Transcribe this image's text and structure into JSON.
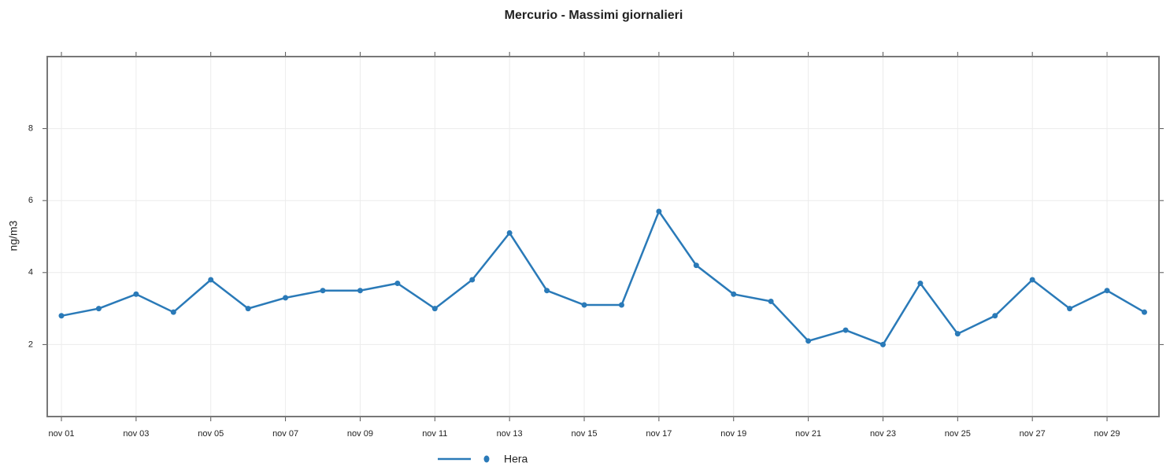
{
  "chart_data": {
    "type": "line",
    "title": "Mercurio - Massimi giornalieri",
    "y_label": "ng/m3",
    "categories": [
      "nov 01",
      null,
      "nov 03",
      null,
      "nov 05",
      null,
      "nov 07",
      null,
      "nov 09",
      null,
      "nov 11",
      null,
      "nov 13",
      null,
      "nov 15",
      null,
      "nov 17",
      null,
      "nov 19",
      null,
      "nov 21",
      null,
      "nov 23",
      null,
      "nov 25",
      null,
      "nov 27",
      null,
      "nov 29",
      null
    ],
    "series": [
      {
        "name": "Hera",
        "color": "#2a7ab8",
        "values": [
          2.8,
          3.0,
          3.4,
          2.9,
          3.8,
          3.0,
          3.3,
          3.5,
          3.5,
          3.7,
          3.0,
          3.8,
          5.1,
          3.5,
          3.1,
          3.1,
          5.7,
          4.2,
          3.4,
          3.2,
          2.1,
          2.4,
          2.0,
          3.7,
          2.3,
          2.8,
          3.8,
          3.0,
          3.5,
          2.9
        ]
      }
    ],
    "ylim": [
      0,
      10
    ],
    "yticks": [
      2,
      4,
      6,
      8
    ],
    "grid": true,
    "legend": "bottom"
  }
}
